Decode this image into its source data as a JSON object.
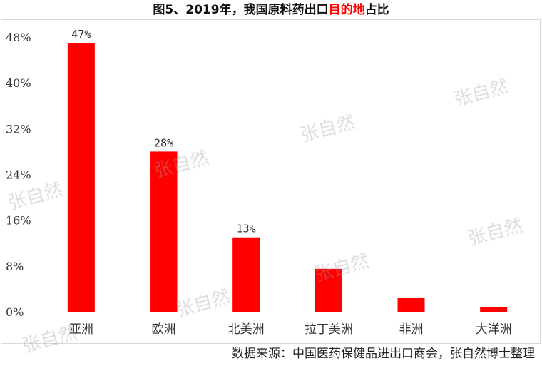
{
  "header": {
    "title_prefix": "图5、2019年，我国原料药出口",
    "title_highlight": "目的地",
    "title_suffix": "占比"
  },
  "footer": {
    "source": "数据来源：中国医药保健品进出口商会，张自然博士整理"
  },
  "watermark": {
    "text": "张自然"
  },
  "chart_data": {
    "type": "bar",
    "title": "图5、2019年，我国原料药出口目的地占比",
    "categories": [
      "亚洲",
      "欧洲",
      "北美洲",
      "拉丁美洲",
      "非洲",
      "大洋洲"
    ],
    "values": [
      47,
      28,
      13,
      7.5,
      2.5,
      0.8
    ],
    "data_labels": [
      "47%",
      "28%",
      "13%",
      "",
      "",
      ""
    ],
    "ylim": [
      0,
      48
    ],
    "yticks": [
      0,
      8,
      16,
      24,
      32,
      40,
      48
    ],
    "ytick_labels": [
      "0%",
      "8%",
      "16%",
      "24%",
      "32%",
      "40%",
      "48%"
    ],
    "grid": false,
    "legend": "none",
    "bar_color": "#ff0000"
  }
}
